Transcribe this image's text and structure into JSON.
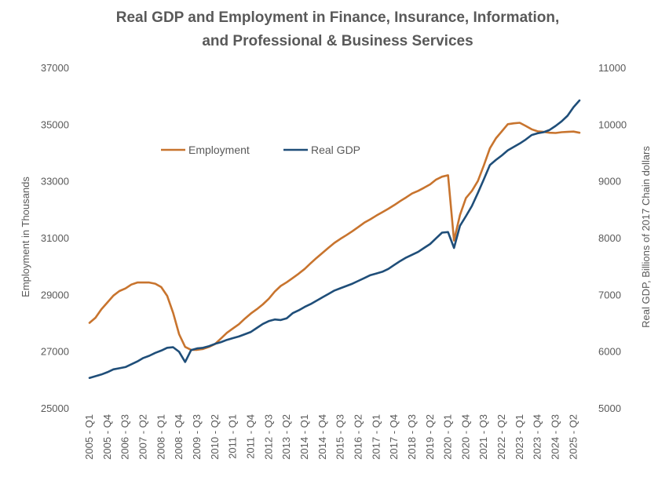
{
  "chart_data": {
    "type": "line",
    "title": "Real GDP and Employment in Finance, Insurance, Information,",
    "subtitle": "and Professional & Business Services",
    "ylabel": "Employment in Thousands",
    "y2label": "Real GDP, Billions of 2017 Chain dollars",
    "ylim": [
      25000,
      37000
    ],
    "y2lim": [
      5000,
      11000
    ],
    "yticks": [
      "25000",
      "27000",
      "29000",
      "31000",
      "33000",
      "35000",
      "37000"
    ],
    "y2ticks": [
      "5000",
      "6000",
      "7000",
      "8000",
      "9000",
      "10000",
      "11000"
    ],
    "legend_position": "upper-left",
    "grid": false,
    "x_tick_labels": [
      "2005 - Q1",
      "2005 - Q4",
      "2006 - Q3",
      "2007 - Q2",
      "2008 - Q1",
      "2008 - Q4",
      "2009 - Q3",
      "2010 - Q2",
      "2011 - Q1",
      "2011 - Q4",
      "2012 - Q3",
      "2013 - Q2",
      "2014 - Q1",
      "2014 - Q4",
      "2015 - Q3",
      "2016 - Q2",
      "2017 - Q1",
      "2017 - Q4",
      "2018 - Q3",
      "2019 - Q2",
      "2020 - Q1",
      "2020 - Q4",
      "2021 - Q3",
      "2022 - Q2",
      "2023 - Q1",
      "2023 - Q4",
      "2024 - Q3",
      "2025 - Q2"
    ],
    "x_quarters": [
      "2005-Q1",
      "2005-Q2",
      "2005-Q3",
      "2005-Q4",
      "2006-Q1",
      "2006-Q2",
      "2006-Q3",
      "2006-Q4",
      "2007-Q1",
      "2007-Q2",
      "2007-Q3",
      "2007-Q4",
      "2008-Q1",
      "2008-Q2",
      "2008-Q3",
      "2008-Q4",
      "2009-Q1",
      "2009-Q2",
      "2009-Q3",
      "2009-Q4",
      "2010-Q1",
      "2010-Q2",
      "2010-Q3",
      "2010-Q4",
      "2011-Q1",
      "2011-Q2",
      "2011-Q3",
      "2011-Q4",
      "2012-Q1",
      "2012-Q2",
      "2012-Q3",
      "2012-Q4",
      "2013-Q1",
      "2013-Q2",
      "2013-Q3",
      "2013-Q4",
      "2014-Q1",
      "2014-Q2",
      "2014-Q3",
      "2014-Q4",
      "2015-Q1",
      "2015-Q2",
      "2015-Q3",
      "2015-Q4",
      "2016-Q1",
      "2016-Q2",
      "2016-Q3",
      "2016-Q4",
      "2017-Q1",
      "2017-Q2",
      "2017-Q3",
      "2017-Q4",
      "2018-Q1",
      "2018-Q2",
      "2018-Q3",
      "2018-Q4",
      "2019-Q1",
      "2019-Q2",
      "2019-Q3",
      "2019-Q4",
      "2020-Q1",
      "2020-Q2",
      "2020-Q3",
      "2020-Q4",
      "2021-Q1",
      "2021-Q2",
      "2021-Q3",
      "2021-Q4",
      "2022-Q1",
      "2022-Q2",
      "2022-Q3",
      "2022-Q4",
      "2023-Q1",
      "2023-Q2",
      "2023-Q3",
      "2023-Q4",
      "2024-Q1",
      "2024-Q2",
      "2024-Q3",
      "2024-Q4",
      "2025-Q1",
      "2025-Q2",
      "2025-Q3"
    ],
    "series": [
      {
        "name": "Employment",
        "axis": "left",
        "color": "#C8742E",
        "values": [
          28000,
          28180,
          28480,
          28720,
          28960,
          29120,
          29210,
          29350,
          29420,
          29420,
          29420,
          29380,
          29260,
          28950,
          28350,
          27600,
          27150,
          27050,
          27050,
          27080,
          27150,
          27250,
          27450,
          27650,
          27800,
          27950,
          28150,
          28330,
          28480,
          28650,
          28850,
          29100,
          29300,
          29430,
          29580,
          29730,
          29900,
          30100,
          30290,
          30470,
          30650,
          30820,
          30960,
          31090,
          31230,
          31380,
          31530,
          31650,
          31780,
          31900,
          32020,
          32150,
          32290,
          32420,
          32560,
          32650,
          32760,
          32880,
          33050,
          33150,
          33200,
          30900,
          31800,
          32400,
          32650,
          33000,
          33550,
          34150,
          34500,
          34750,
          35000,
          35030,
          35050,
          34940,
          34820,
          34750,
          34730,
          34700,
          34690,
          34720,
          34730,
          34740,
          34700
        ]
      },
      {
        "name": "Real GDP",
        "axis": "right",
        "color": "#1F4E79",
        "values": [
          5530,
          5560,
          5590,
          5630,
          5680,
          5700,
          5720,
          5770,
          5820,
          5880,
          5920,
          5970,
          6010,
          6060,
          6070,
          5990,
          5810,
          6020,
          6050,
          6060,
          6090,
          6130,
          6160,
          6200,
          6230,
          6260,
          6300,
          6340,
          6410,
          6480,
          6530,
          6560,
          6550,
          6580,
          6670,
          6720,
          6780,
          6830,
          6890,
          6950,
          7010,
          7070,
          7110,
          7150,
          7190,
          7240,
          7290,
          7340,
          7370,
          7400,
          7450,
          7520,
          7590,
          7650,
          7700,
          7750,
          7820,
          7890,
          7990,
          8090,
          8100,
          7820,
          8210,
          8380,
          8560,
          8790,
          9030,
          9280,
          9370,
          9450,
          9540,
          9600,
          9660,
          9730,
          9810,
          9840,
          9860,
          9900,
          9970,
          10050,
          10150,
          10300,
          10420
        ]
      }
    ]
  }
}
